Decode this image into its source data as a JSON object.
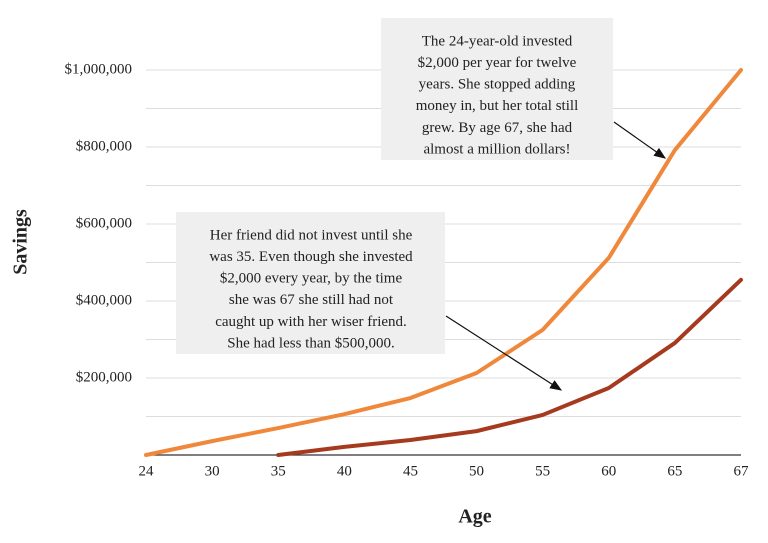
{
  "chart_data": {
    "type": "line",
    "categories": [
      "24",
      "30",
      "35",
      "40",
      "45",
      "50",
      "55",
      "60",
      "65",
      "67"
    ],
    "x_label": "Age",
    "y_label": "Savings",
    "series": [
      {
        "color": "#f0883c",
        "values": [
          0,
          36000,
          70000,
          106000,
          148000,
          213000,
          325000,
          512000,
          792000,
          1000000
        ]
      },
      {
        "color": "#a63a1f",
        "values": [
          null,
          null,
          0,
          21000,
          39000,
          62000,
          104000,
          174000,
          291000,
          455000
        ]
      }
    ],
    "ylim": [
      0,
      1000000
    ],
    "yticks": [
      {
        "value": 200000,
        "label": "$200,000"
      },
      {
        "value": 400000,
        "label": "$400,000"
      },
      {
        "value": 600000,
        "label": "$600,000"
      },
      {
        "value": 800000,
        "label": "$800,000"
      },
      {
        "value": 1000000,
        "label": "$1,000,000"
      }
    ],
    "minor_yticks": [
      100000,
      300000,
      500000,
      700000,
      900000
    ],
    "grid": true,
    "annotations": [
      {
        "lines": [
          "The 24-year-old invested",
          "$2,000 per year for twelve",
          "years. She stopped adding",
          "money in, but her total still",
          "grew. By age 67, she had",
          "almost a million dollars!"
        ]
      },
      {
        "lines": [
          "Her friend did not invest until she",
          "was 35. Even though she invested",
          "$2,000 every year, by the time",
          "she was 67 she still had not",
          "caught up with her wiser friend.",
          "She had less than $500,000."
        ]
      }
    ]
  }
}
